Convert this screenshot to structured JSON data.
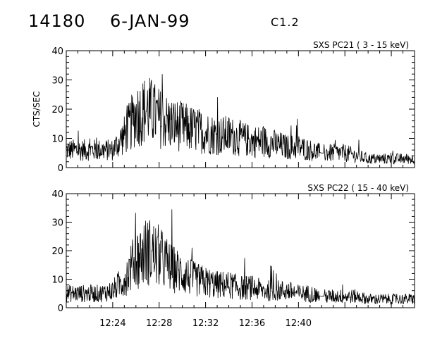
{
  "header": {
    "event_id": "14180",
    "date": "6-JAN-99",
    "flare_class": "C1.2"
  },
  "chart_data": [
    {
      "type": "line",
      "title": "SXS PC21  (  3 - 15 keV)",
      "ylabel": "CTS/SEC",
      "xlabel": "",
      "ylim": [
        0,
        40
      ],
      "yticks": [
        0,
        10,
        20,
        30,
        40
      ],
      "xlim_minutes": [
        740,
        770
      ],
      "xticks": [
        "12:24",
        "12:28",
        "12:32",
        "12:36",
        "12:40"
      ],
      "series": [
        {
          "x_minutes": [
            740.0,
            741.0,
            742.0,
            743.0,
            744.0,
            745.0,
            746.0,
            747.0,
            748.0,
            749.0,
            750.0,
            751.0,
            752.0,
            753.0,
            754.0,
            755.0,
            756.0,
            757.0,
            758.0,
            759.0,
            760.0,
            761.0,
            762.0,
            763.0,
            764.0,
            765.0,
            766.0,
            767.0,
            768.0,
            769.0,
            770.0
          ],
          "values": [
            6,
            6,
            6,
            6,
            6,
            11,
            18,
            20,
            17,
            15,
            14,
            13,
            12,
            11,
            11,
            10,
            9,
            9,
            8,
            7,
            7,
            6,
            5,
            5,
            5,
            4,
            3,
            3,
            3,
            3,
            3
          ]
        }
      ]
    },
    {
      "type": "line",
      "title": "SXS PC22  ( 15 - 40 keV)",
      "ylabel": "",
      "xlabel": "",
      "ylim": [
        0,
        40
      ],
      "yticks": [
        0,
        10,
        20,
        30,
        40
      ],
      "xlim_minutes": [
        740,
        770
      ],
      "xticks": [
        "12:24",
        "12:28",
        "12:32",
        "12:36",
        "12:40"
      ],
      "series": [
        {
          "x_minutes": [
            740.0,
            741.0,
            742.0,
            743.0,
            744.0,
            745.0,
            746.0,
            747.0,
            748.0,
            749.0,
            750.0,
            751.0,
            752.0,
            753.0,
            754.0,
            755.0,
            756.0,
            757.0,
            758.0,
            759.0,
            760.0,
            761.0,
            762.0,
            763.0,
            764.0,
            765.0,
            766.0,
            767.0,
            768.0,
            769.0,
            770.0
          ],
          "values": [
            5,
            5,
            5,
            5,
            6,
            10,
            17,
            20,
            18,
            14,
            12,
            10,
            9,
            8,
            8,
            7,
            7,
            6,
            6,
            6,
            5,
            5,
            4,
            4,
            4,
            4,
            3,
            3,
            3,
            3,
            3
          ]
        }
      ]
    }
  ]
}
